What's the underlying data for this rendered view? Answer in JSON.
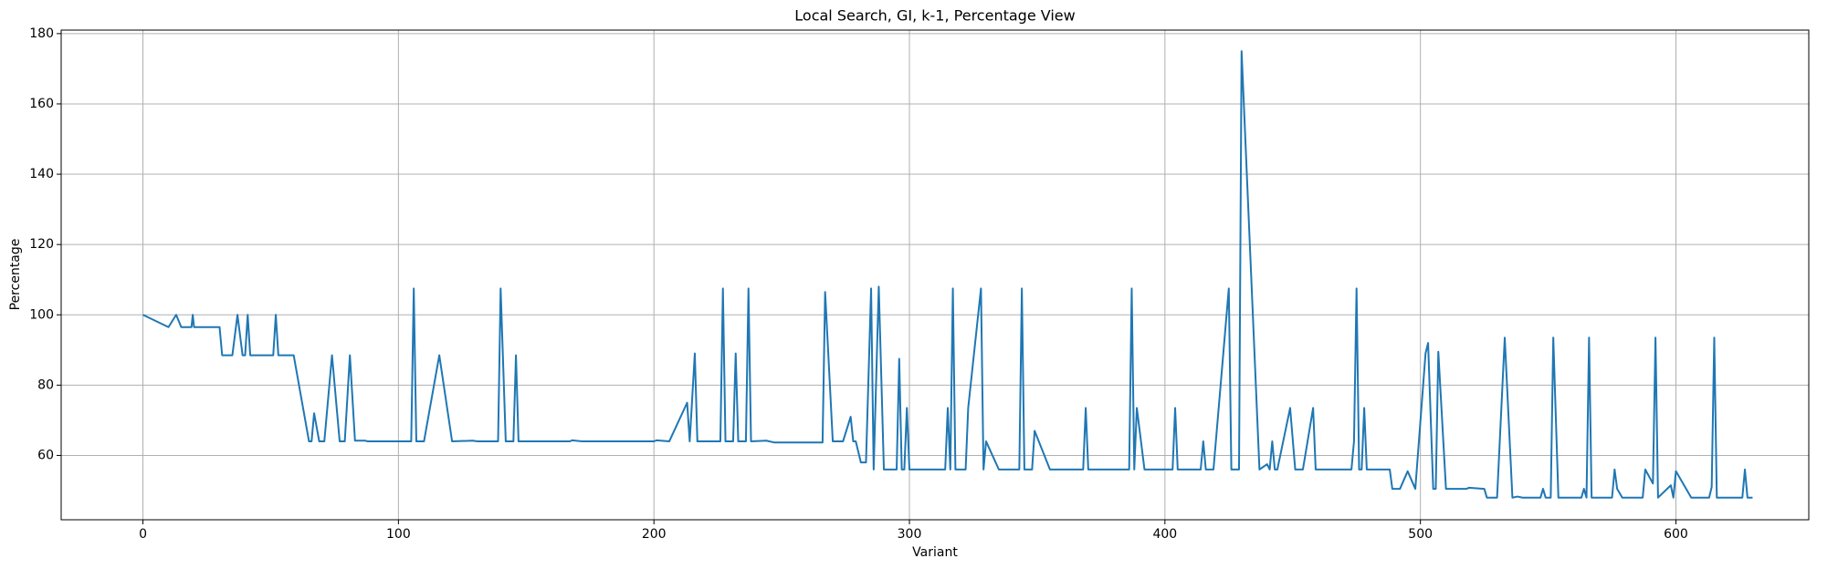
{
  "chart_data": {
    "type": "line",
    "title": "Local Search, GI, k-1, Percentage View",
    "xlabel": "Variant",
    "ylabel": "Percentage",
    "color": "#1f77b4",
    "grid": true,
    "xlim": [
      -32,
      652
    ],
    "ylim": [
      41.7,
      181
    ],
    "xticks": [
      0,
      100,
      200,
      300,
      400,
      500,
      600
    ],
    "yticks": [
      60,
      80,
      100,
      120,
      140,
      160,
      180
    ],
    "x": [
      0,
      10,
      13,
      15,
      19,
      19.5,
      20,
      30,
      31,
      35,
      37,
      39,
      40,
      41,
      42,
      51,
      52,
      53,
      59,
      65,
      66,
      67,
      69,
      71,
      74,
      77,
      79,
      81,
      83,
      87,
      88,
      105,
      106,
      107,
      110,
      116,
      121,
      129,
      131,
      139,
      140,
      142,
      145,
      146,
      147,
      167,
      168,
      172,
      200,
      201,
      206,
      213,
      214,
      216,
      217,
      226,
      227,
      228,
      231,
      232,
      233,
      236,
      237,
      238,
      244,
      247,
      266,
      267,
      270,
      274,
      277,
      278,
      279,
      281,
      283,
      285,
      286,
      288,
      290,
      295,
      296,
      297,
      298,
      299,
      300,
      314,
      315,
      316,
      317,
      318,
      322,
      323,
      328,
      329,
      330,
      335,
      343,
      344,
      345,
      348,
      349,
      355,
      368,
      369,
      370,
      386,
      387,
      388,
      389,
      392,
      403,
      404,
      405,
      414,
      415,
      416,
      419,
      425,
      426,
      429,
      430,
      437,
      440,
      441,
      442,
      443,
      444,
      449,
      451,
      454,
      458,
      459,
      473,
      474,
      475,
      476,
      477,
      478,
      479,
      488,
      489,
      492,
      495,
      498,
      502,
      503,
      505,
      506,
      507,
      510,
      518,
      519,
      525,
      526,
      530,
      533,
      536,
      538,
      540,
      547,
      548,
      549,
      551,
      552,
      554,
      563,
      564,
      565,
      566,
      567,
      575,
      576,
      577,
      579,
      587,
      588,
      591,
      592,
      593,
      598,
      599,
      600,
      606,
      613,
      614,
      615,
      616,
      626,
      627,
      628,
      630
    ],
    "values": [
      100,
      96.5,
      100,
      96.5,
      96.5,
      100,
      96.5,
      96.5,
      88.5,
      88.5,
      100,
      88.5,
      88.5,
      100,
      88.5,
      88.5,
      100,
      88.5,
      88.5,
      64,
      64,
      72,
      64,
      64,
      88.5,
      64,
      64,
      88.5,
      64.2,
      64.2,
      64,
      64,
      107.5,
      64,
      64,
      88.5,
      64,
      64.2,
      64,
      64,
      107.5,
      64,
      64,
      88.5,
      64,
      64,
      64.3,
      64,
      64,
      64.3,
      64,
      75,
      64,
      89,
      64,
      64,
      107.5,
      64,
      64,
      89,
      64,
      64,
      107.5,
      64,
      64.2,
      63.7,
      63.7,
      106.5,
      64,
      64,
      71,
      64,
      64,
      58,
      58,
      107.5,
      56,
      108,
      56,
      56,
      87.5,
      56,
      56,
      73.5,
      56,
      56,
      73.5,
      56,
      107.5,
      56,
      56,
      73.5,
      107.5,
      56,
      64,
      56,
      56,
      107.5,
      56,
      56,
      67,
      56,
      56,
      73.5,
      56,
      56,
      107.5,
      56,
      73.5,
      56,
      56,
      73.5,
      56,
      56,
      64,
      56,
      56,
      107.5,
      56,
      56,
      175,
      56,
      57.5,
      56,
      64,
      56,
      56,
      73.5,
      56,
      56,
      73.5,
      56,
      56,
      64,
      107.5,
      56,
      56,
      73.5,
      56,
      56,
      50.5,
      50.5,
      55.5,
      50.5,
      89,
      92,
      50.5,
      50.5,
      89.5,
      50.5,
      50.5,
      50.8,
      50.5,
      48,
      48,
      93.5,
      48,
      48.3,
      48,
      48,
      50.5,
      48,
      48,
      93.5,
      48,
      48,
      50.5,
      48,
      93.5,
      48,
      48,
      56,
      50.5,
      48,
      48,
      56,
      52,
      93.5,
      48,
      51.5,
      48,
      55.5,
      48,
      48,
      51,
      93.5,
      48,
      48,
      56,
      48,
      48
    ]
  }
}
